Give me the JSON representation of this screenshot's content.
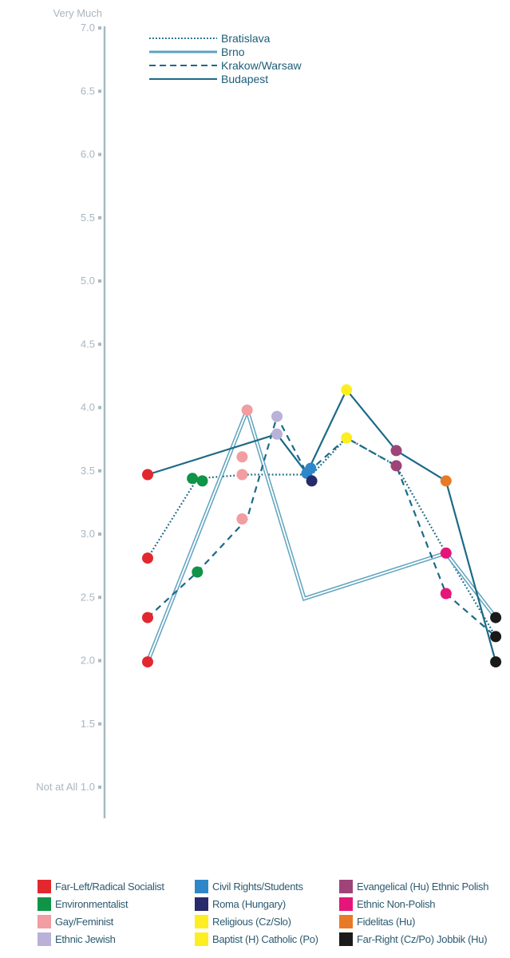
{
  "chart_data": {
    "type": "line",
    "y_axis": {
      "ylim": [
        1.0,
        7.0
      ],
      "ticks": [
        "1.0",
        "1.5",
        "2.0",
        "2.5",
        "3.0",
        "3.5",
        "4.0",
        "4.5",
        "5.0",
        "5.5",
        "6.0",
        "6.5",
        "7.0"
      ],
      "top_label": "Very Much",
      "bottom_label": "Not at All"
    },
    "x_axis": {
      "labels": []
    },
    "grid": false,
    "colors": {
      "axis": "#a7b9c3",
      "text": "#a9b6bf",
      "line": "#1c6a87",
      "brno": "#5ea3be"
    },
    "series": [
      {
        "name": "Bratislava",
        "style": "dotted",
        "color": "#1c6a87",
        "points": [
          {
            "x": 1,
            "y": 2.81,
            "group": "Far-Left/Radical Socialist"
          },
          {
            "x": 2,
            "y": 3.44,
            "group": "Environmentalist"
          },
          {
            "x": 3,
            "y": 3.47,
            "group": "Gay/Feminist"
          },
          {
            "x": 4.3,
            "y": 3.47,
            "group": "Civil Rights/Students"
          },
          {
            "x": 5,
            "y": 3.76,
            "group": "Religious (Cz/Slo)"
          },
          {
            "x": 6,
            "y": 3.54,
            "group": "Evangelical (Hu) Ethnic Polish"
          },
          {
            "x": 7,
            "y": 2.85,
            "group": "Ethnic Non-Polish"
          },
          {
            "x": 8,
            "y": 2.19,
            "group": "Far-Right (Cz/Po) Jobbik (Hu)"
          }
        ]
      },
      {
        "name": "Brno",
        "style": "double",
        "color": "#5ea3be",
        "points": [
          {
            "x": 1,
            "y": 1.99,
            "group": "Far-Left/Radical Socialist"
          },
          {
            "x": 3,
            "y": 3.98,
            "group": "Gay/Feminist"
          },
          {
            "x": 4.15,
            "y": 2.49,
            "group": ""
          },
          {
            "x": 7,
            "y": 2.85,
            "group": "Ethnic Non-Polish"
          },
          {
            "x": 8,
            "y": 2.34,
            "group": "Far-Right (Cz/Po) Jobbik (Hu)"
          }
        ]
      },
      {
        "name": "Krakow/Warsaw",
        "style": "dashed",
        "color": "#1c6a87",
        "points": [
          {
            "x": 1,
            "y": 2.34,
            "group": "Far-Left/Radical Socialist"
          },
          {
            "x": 2,
            "y": 2.7,
            "group": "Environmentalist"
          },
          {
            "x": 3,
            "y": 3.12,
            "group": "Gay/Feminist"
          },
          {
            "x": 3.6,
            "y": 3.93,
            "group": "Ethnic Jewish"
          },
          {
            "x": 4.2,
            "y": 3.48,
            "group": "Civil Rights/Students"
          },
          {
            "x": 5,
            "y": 3.76,
            "group": "Baptist (H) Catholic (Po)"
          },
          {
            "x": 6,
            "y": 3.54,
            "group": "Evangelical (Hu) Ethnic Polish"
          },
          {
            "x": 7,
            "y": 2.53,
            "group": "Ethnic Non-Polish"
          },
          {
            "x": 8,
            "y": 2.19,
            "group": "Far-Right (Cz/Po) Jobbik (Hu)"
          }
        ]
      },
      {
        "name": "Budapest",
        "style": "solid",
        "color": "#1c6a87",
        "points": [
          {
            "x": 1,
            "y": 3.47,
            "group": "Far-Left/Radical Socialist"
          },
          {
            "x": 3.6,
            "y": 3.79,
            "group": "Ethnic Jewish"
          },
          {
            "x": 4.2,
            "y": 3.48,
            "group": "Civil Rights/Students"
          },
          {
            "x": 5,
            "y": 4.14,
            "group": "Baptist (H) Catholic (Po)"
          },
          {
            "x": 6,
            "y": 3.66,
            "group": "Evangelical (Hu) Ethnic Polish"
          },
          {
            "x": 7,
            "y": 3.42,
            "group": "Fidelitas (Hu)"
          },
          {
            "x": 8,
            "y": 1.99,
            "group": "Far-Right (Cz/Po) Jobbik (Hu)"
          }
        ]
      }
    ],
    "markers": [
      {
        "x": 1,
        "y": 3.47,
        "color": "#e2282e"
      },
      {
        "x": 1,
        "y": 2.81,
        "color": "#e2282e"
      },
      {
        "x": 1,
        "y": 2.34,
        "color": "#e2282e"
      },
      {
        "x": 1,
        "y": 1.99,
        "color": "#e2282e"
      },
      {
        "x": 2,
        "y": 2.7,
        "color": "#0f9448"
      },
      {
        "x": 1.9,
        "y": 3.44,
        "color": "#0f9448"
      },
      {
        "x": 2.1,
        "y": 3.42,
        "color": "#0f9448"
      },
      {
        "x": 3,
        "y": 3.98,
        "color": "#f19da1"
      },
      {
        "x": 2.9,
        "y": 3.61,
        "color": "#f19da1"
      },
      {
        "x": 2.9,
        "y": 3.47,
        "color": "#f19da1"
      },
      {
        "x": 2.9,
        "y": 3.12,
        "color": "#f19da1"
      },
      {
        "x": 3.6,
        "y": 3.93,
        "color": "#b9b1d8"
      },
      {
        "x": 3.6,
        "y": 3.79,
        "color": "#b9b1d8"
      },
      {
        "x": 4.2,
        "y": 3.48,
        "color": "#2e87c8"
      },
      {
        "x": 4.28,
        "y": 3.52,
        "color": "#2e87c8"
      },
      {
        "x": 4.3,
        "y": 3.42,
        "color": "#272a6b"
      },
      {
        "x": 5,
        "y": 4.14,
        "color": "#fcee21"
      },
      {
        "x": 5,
        "y": 3.76,
        "color": "#fcee21"
      },
      {
        "x": 6,
        "y": 3.66,
        "color": "#9e4479"
      },
      {
        "x": 6,
        "y": 3.54,
        "color": "#9e4479"
      },
      {
        "x": 7,
        "y": 3.42,
        "color": "#e87a27"
      },
      {
        "x": 7,
        "y": 2.85,
        "color": "#e5157a"
      },
      {
        "x": 7,
        "y": 2.53,
        "color": "#e5157a"
      },
      {
        "x": 8,
        "y": 2.34,
        "color": "#1a1a1a"
      },
      {
        "x": 8,
        "y": 2.19,
        "color": "#1a1a1a"
      },
      {
        "x": 8,
        "y": 1.99,
        "color": "#1a1a1a"
      }
    ],
    "category_legend": [
      {
        "label": "Far-Left/Radical Socialist",
        "color": "#e2282e"
      },
      {
        "label": "Environmentalist",
        "color": "#0f9448"
      },
      {
        "label": "Gay/Feminist",
        "color": "#f19da1"
      },
      {
        "label": "Ethnic Jewish",
        "color": "#b9b1d8"
      },
      {
        "label": "Civil Rights/Students",
        "color": "#2e87c8"
      },
      {
        "label": "Roma (Hungary)",
        "color": "#272a6b"
      },
      {
        "label": "Religious (Cz/Slo)",
        "color": "#fcee21"
      },
      {
        "label": "Baptist (H) Catholic (Po)",
        "color": "#fcee21"
      },
      {
        "label": "Evangelical (Hu) Ethnic Polish",
        "color": "#9e4479"
      },
      {
        "label": "Ethnic Non-Polish",
        "color": "#e5157a"
      },
      {
        "label": "Fidelitas (Hu)",
        "color": "#e87a27"
      },
      {
        "label": "Far-Right (Cz/Po) Jobbik (Hu)",
        "color": "#1a1a1a"
      }
    ]
  }
}
